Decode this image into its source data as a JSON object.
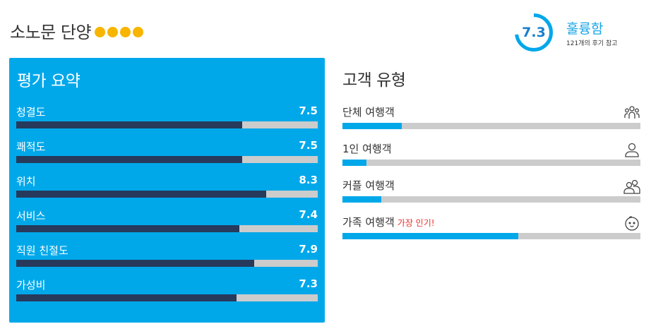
{
  "hotel": {
    "name": "소노문 단양",
    "rating_dots": 4
  },
  "score": {
    "value": "7.3",
    "numeric": 7.3,
    "max": 10,
    "label": "훌륭함",
    "review_note": "121개의 후기 참고"
  },
  "summary": {
    "title": "평가 요약",
    "max": 10,
    "metrics": [
      {
        "label": "청결도",
        "value": "7.5",
        "numeric": 7.5
      },
      {
        "label": "쾌적도",
        "value": "7.5",
        "numeric": 7.5
      },
      {
        "label": "위치",
        "value": "8.3",
        "numeric": 8.3
      },
      {
        "label": "서비스",
        "value": "7.4",
        "numeric": 7.4
      },
      {
        "label": "직원 친절도",
        "value": "7.9",
        "numeric": 7.9
      },
      {
        "label": "가성비",
        "value": "7.3",
        "numeric": 7.3
      }
    ]
  },
  "customers": {
    "title": "고객 유형",
    "types": [
      {
        "label": "단체 여행객",
        "share": 0.2,
        "icon": "group-icon",
        "badge": ""
      },
      {
        "label": "1인 여행객",
        "share": 0.08,
        "icon": "single-person-icon",
        "badge": ""
      },
      {
        "label": "커플 여행객",
        "share": 0.13,
        "icon": "couple-icon",
        "badge": ""
      },
      {
        "label": "가족 여행객",
        "share": 0.59,
        "icon": "family-baby-icon",
        "badge": "가장 인기!"
      }
    ]
  },
  "colors": {
    "accent": "#00a8ea",
    "bar_dark": "#273a5c",
    "track": "#cccccc",
    "star": "#f7b500",
    "badge": "#e8322c"
  }
}
